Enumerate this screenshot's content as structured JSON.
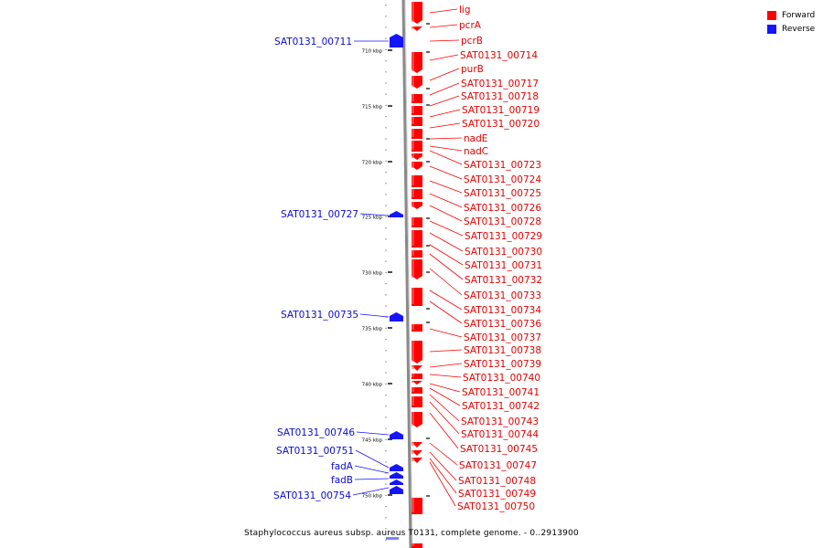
{
  "legend": {
    "forward": {
      "label": "Forward",
      "color": "#ff0000"
    },
    "reverse": {
      "label": "Reverse",
      "color": "#1414ff"
    }
  },
  "caption": "Staphylococcus aureus subsp. aureus T0131, complete genome. - 0..2913900",
  "scale_labels": [
    "710 kbp",
    "715 kbp",
    "720 kbp",
    "725 kbp",
    "730 kbp",
    "735 kbp",
    "740 kbp",
    "745 kbp",
    "750 kbp"
  ],
  "forward_genes": [
    "lig",
    "pcrA",
    "pcrB",
    "SAT0131_00714",
    "purB",
    "SAT0131_00717",
    "SAT0131_00718",
    "SAT0131_00719",
    "SAT0131_00720",
    "nadE",
    "nadC",
    "SAT0131_00723",
    "SAT0131_00724",
    "SAT0131_00725",
    "SAT0131_00726",
    "SAT0131_00728",
    "SAT0131_00729",
    "SAT0131_00730",
    "SAT0131_00731",
    "SAT0131_00732",
    "SAT0131_00733",
    "SAT0131_00734",
    "SAT0131_00736",
    "SAT0131_00737",
    "SAT0131_00738",
    "SAT0131_00739",
    "SAT0131_00740",
    "SAT0131_00741",
    "SAT0131_00742",
    "SAT0131_00743",
    "SAT0131_00744",
    "SAT0131_00745",
    "SAT0131_00747",
    "SAT0131_00748",
    "SAT0131_00749",
    "SAT0131_00750"
  ],
  "reverse_genes": [
    "SAT0131_00711",
    "SAT0131_00727",
    "SAT0131_00735",
    "SAT0131_00746",
    "SAT0131_00751",
    "fadA",
    "fadB",
    "SAT0131_00754"
  ]
}
